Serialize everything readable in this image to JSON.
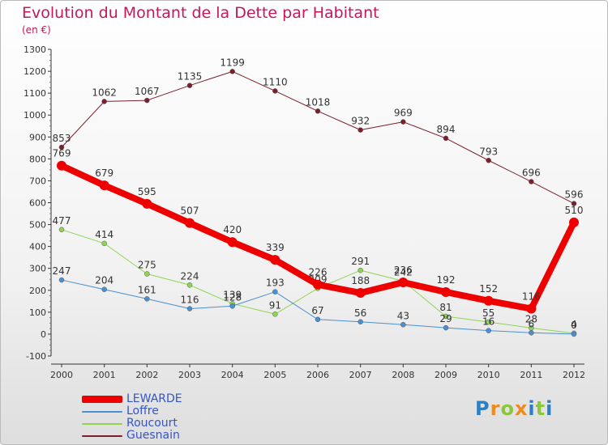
{
  "header": {
    "title": "Evolution du Montant de la Dette par Habitant",
    "subtitle": "(en €)"
  },
  "logo": {
    "letters": [
      {
        "ch": "P",
        "color": "#2d7fc1"
      },
      {
        "ch": "r",
        "color": "#f08a1c"
      },
      {
        "ch": "o",
        "color": "#8cc63f"
      },
      {
        "ch": "x",
        "color": "#f08a1c"
      },
      {
        "ch": "i",
        "color": "#2d7fc1"
      },
      {
        "ch": "t",
        "color": "#8cc63f"
      },
      {
        "ch": "i",
        "color": "#2d7fc1"
      }
    ]
  },
  "chart_data": {
    "type": "line",
    "title": "Evolution du Montant de la Dette par Habitant",
    "subtitle": "(en €)",
    "categories": [
      "2000",
      "2001",
      "2002",
      "2003",
      "2004",
      "2005",
      "2006",
      "2007",
      "2008",
      "2009",
      "2010",
      "2011",
      "2012"
    ],
    "ylim": [
      -100,
      1300
    ],
    "yticks": [
      -100,
      0,
      100,
      200,
      300,
      400,
      500,
      600,
      700,
      800,
      900,
      1000,
      1100,
      1200,
      1300
    ],
    "grid": false,
    "legend_position": "bottom-left",
    "series": [
      {
        "name": "Guesnain",
        "color": "#7a1f2b",
        "lineWidth": 1,
        "pointRadius": 3,
        "values": [
          853,
          1062,
          1067,
          1135,
          1199,
          1110,
          1018,
          932,
          969,
          894,
          793,
          696,
          596
        ]
      },
      {
        "name": "Roucourt",
        "color": "#8fd454",
        "lineWidth": 1,
        "pointRadius": 3,
        "values": [
          477,
          414,
          275,
          224,
          139,
          91,
          209,
          291,
          242,
          81,
          55,
          28,
          4
        ]
      },
      {
        "name": "Loffre",
        "color": "#4a8fd0",
        "lineWidth": 1,
        "pointRadius": 3,
        "values": [
          247,
          204,
          161,
          116,
          128,
          193,
          67,
          56,
          43,
          29,
          16,
          6,
          0
        ]
      },
      {
        "name": "LEWARDE",
        "color": "#ee0000",
        "lineWidth": 8,
        "pointRadius": 6,
        "values": [
          769,
          679,
          595,
          507,
          420,
          339,
          226,
          188,
          236,
          192,
          152,
          116,
          510
        ]
      }
    ],
    "legend_order": [
      "LEWARDE",
      "Loffre",
      "Roucourt",
      "Guesnain"
    ]
  }
}
